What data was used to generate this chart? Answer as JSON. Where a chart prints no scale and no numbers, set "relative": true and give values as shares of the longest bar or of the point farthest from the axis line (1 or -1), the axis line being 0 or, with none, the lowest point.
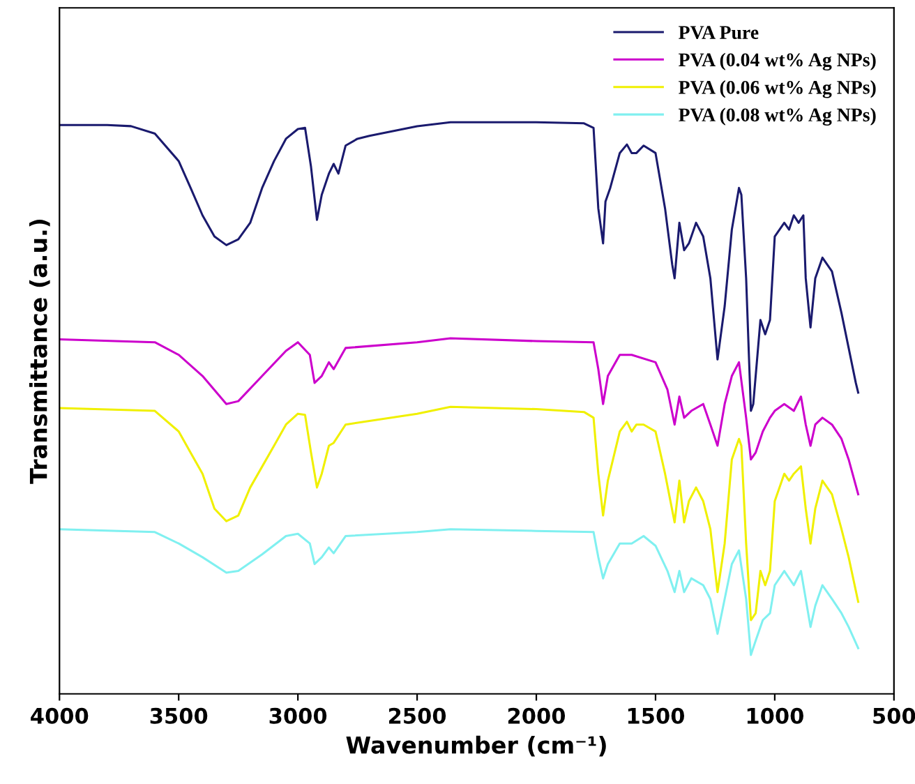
{
  "chart_data": {
    "type": "line",
    "relative": true,
    "xlabel": "Wavenumber (cm⁻¹)",
    "ylabel": "Transmittance (a.u.)",
    "xlim": [
      4000,
      500
    ],
    "xticks": [
      4000,
      3500,
      3000,
      2500,
      2000,
      1500,
      1000,
      500
    ],
    "tick_labels": "x",
    "grid": false,
    "legend": "top right",
    "marker": "none",
    "line_style": "solid",
    "series": [
      {
        "name": "PVA Pure",
        "color": "#1a1a6e",
        "x": [
          4000,
          3800,
          3700,
          3600,
          3500,
          3450,
          3400,
          3350,
          3300,
          3250,
          3200,
          3150,
          3100,
          3050,
          3000,
          2970,
          2945,
          2920,
          2900,
          2870,
          2850,
          2830,
          2800,
          2750,
          2700,
          2500,
          2360,
          2000,
          1800,
          1760,
          1740,
          1720,
          1710,
          1690,
          1650,
          1620,
          1600,
          1580,
          1550,
          1500,
          1460,
          1430,
          1420,
          1400,
          1380,
          1360,
          1330,
          1300,
          1270,
          1240,
          1210,
          1180,
          1150,
          1140,
          1120,
          1100,
          1090,
          1060,
          1040,
          1020,
          1000,
          960,
          940,
          920,
          900,
          880,
          870,
          850,
          830,
          800,
          760,
          720,
          690,
          660,
          650
        ],
        "values": [
          0.995,
          0.995,
          0.993,
          0.98,
          0.932,
          0.885,
          0.837,
          0.8,
          0.785,
          0.795,
          0.824,
          0.885,
          0.932,
          0.971,
          0.988,
          0.99,
          0.922,
          0.829,
          0.873,
          0.91,
          0.927,
          0.91,
          0.959,
          0.971,
          0.976,
          0.993,
          1.0,
          1.0,
          0.998,
          0.99,
          0.849,
          0.788,
          0.861,
          0.885,
          0.946,
          0.961,
          0.946,
          0.946,
          0.959,
          0.946,
          0.849,
          0.751,
          0.727,
          0.824,
          0.776,
          0.788,
          0.824,
          0.8,
          0.727,
          0.585,
          0.678,
          0.812,
          0.885,
          0.873,
          0.727,
          0.495,
          0.507,
          0.654,
          0.629,
          0.654,
          0.8,
          0.824,
          0.812,
          0.837,
          0.824,
          0.837,
          0.727,
          0.641,
          0.727,
          0.763,
          0.739,
          0.666,
          0.605,
          0.544,
          0.527
        ]
      },
      {
        "name": "PVA (0.04 wt% Ag NPs)",
        "color": "#cc00cc",
        "x": [
          4000,
          3600,
          3500,
          3400,
          3300,
          3250,
          3150,
          3050,
          3000,
          2950,
          2930,
          2900,
          2870,
          2850,
          2800,
          2500,
          2360,
          2000,
          1760,
          1740,
          1720,
          1700,
          1650,
          1600,
          1500,
          1450,
          1420,
          1400,
          1380,
          1350,
          1300,
          1270,
          1240,
          1210,
          1180,
          1150,
          1120,
          1100,
          1080,
          1050,
          1020,
          1000,
          960,
          920,
          890,
          870,
          850,
          830,
          800,
          760,
          720,
          690,
          650
        ],
        "values": [
          0.62,
          0.615,
          0.593,
          0.556,
          0.507,
          0.512,
          0.556,
          0.6,
          0.615,
          0.593,
          0.544,
          0.556,
          0.58,
          0.568,
          0.605,
          0.615,
          0.622,
          0.617,
          0.615,
          0.568,
          0.507,
          0.556,
          0.593,
          0.593,
          0.58,
          0.532,
          0.471,
          0.52,
          0.483,
          0.495,
          0.507,
          0.471,
          0.434,
          0.507,
          0.556,
          0.58,
          0.483,
          0.41,
          0.422,
          0.459,
          0.483,
          0.495,
          0.507,
          0.495,
          0.52,
          0.471,
          0.434,
          0.471,
          0.483,
          0.471,
          0.446,
          0.41,
          0.349
        ]
      },
      {
        "name": "PVA (0.06 wt% Ag NPs)",
        "color": "#f0f000",
        "x": [
          4000,
          3600,
          3500,
          3450,
          3400,
          3350,
          3300,
          3250,
          3200,
          3100,
          3050,
          3000,
          2970,
          2945,
          2920,
          2900,
          2870,
          2850,
          2800,
          2500,
          2360,
          2000,
          1800,
          1760,
          1740,
          1720,
          1700,
          1650,
          1620,
          1600,
          1580,
          1550,
          1500,
          1460,
          1420,
          1400,
          1380,
          1360,
          1330,
          1300,
          1270,
          1240,
          1210,
          1180,
          1150,
          1140,
          1120,
          1100,
          1080,
          1060,
          1040,
          1020,
          1000,
          960,
          940,
          920,
          890,
          870,
          850,
          830,
          800,
          760,
          720,
          690,
          650
        ],
        "values": [
          0.5,
          0.495,
          0.459,
          0.422,
          0.385,
          0.324,
          0.302,
          0.312,
          0.361,
          0.434,
          0.471,
          0.49,
          0.488,
          0.422,
          0.361,
          0.385,
          0.434,
          0.439,
          0.471,
          0.49,
          0.502,
          0.498,
          0.493,
          0.483,
          0.385,
          0.312,
          0.373,
          0.459,
          0.476,
          0.459,
          0.471,
          0.471,
          0.459,
          0.385,
          0.3,
          0.373,
          0.3,
          0.337,
          0.361,
          0.337,
          0.288,
          0.178,
          0.263,
          0.41,
          0.446,
          0.434,
          0.263,
          0.129,
          0.141,
          0.215,
          0.19,
          0.215,
          0.337,
          0.385,
          0.373,
          0.385,
          0.398,
          0.324,
          0.263,
          0.324,
          0.373,
          0.349,
          0.288,
          0.239,
          0.161
        ]
      },
      {
        "name": "PVA (0.08 wt% Ag NPs)",
        "color": "#80f0f0",
        "x": [
          4000,
          3600,
          3500,
          3400,
          3300,
          3250,
          3150,
          3050,
          3000,
          2950,
          2930,
          2900,
          2870,
          2850,
          2800,
          2500,
          2360,
          2000,
          1760,
          1740,
          1720,
          1700,
          1650,
          1600,
          1550,
          1500,
          1450,
          1420,
          1400,
          1380,
          1350,
          1300,
          1270,
          1240,
          1210,
          1180,
          1150,
          1120,
          1100,
          1080,
          1050,
          1020,
          1000,
          960,
          920,
          890,
          870,
          850,
          830,
          800,
          760,
          720,
          690,
          650
        ],
        "values": [
          0.288,
          0.283,
          0.263,
          0.239,
          0.212,
          0.215,
          0.244,
          0.276,
          0.28,
          0.263,
          0.227,
          0.239,
          0.256,
          0.246,
          0.276,
          0.283,
          0.288,
          0.285,
          0.283,
          0.239,
          0.202,
          0.227,
          0.263,
          0.263,
          0.276,
          0.259,
          0.215,
          0.178,
          0.215,
          0.178,
          0.202,
          0.19,
          0.166,
          0.105,
          0.166,
          0.227,
          0.251,
          0.166,
          0.068,
          0.093,
          0.129,
          0.141,
          0.19,
          0.215,
          0.19,
          0.215,
          0.166,
          0.117,
          0.154,
          0.19,
          0.166,
          0.141,
          0.117,
          0.08
        ]
      }
    ]
  }
}
